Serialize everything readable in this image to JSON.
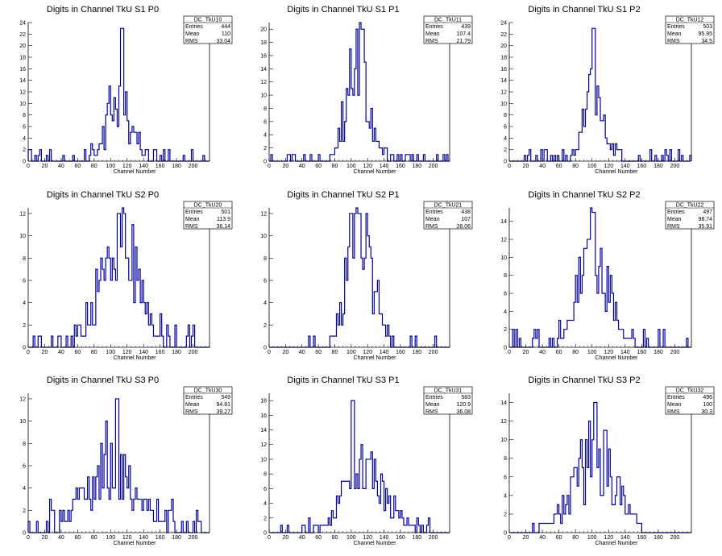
{
  "chart_data": [
    {
      "type": "bar",
      "title": "Digits in Channel TkU S1 P0",
      "xlabel": "Channel Number",
      "ylabel": "",
      "xlim": [
        0,
        220
      ],
      "ylim": [
        0,
        24
      ],
      "xticks": [
        0,
        20,
        40,
        60,
        80,
        100,
        120,
        140,
        160,
        180,
        200
      ],
      "yticks": [
        0,
        2,
        4,
        6,
        8,
        10,
        12,
        14,
        16,
        18,
        20,
        22,
        24
      ],
      "stats": {
        "name": "DC_TkU10",
        "entries": "444",
        "mean": "110",
        "rms": "33.04"
      },
      "hist": {
        "bin_width": 2,
        "peak_at": [
          114,
          23
        ],
        "sigma": 14,
        "amp": 11,
        "mean": 110,
        "noise": 1.5,
        "seed": 1
      }
    },
    {
      "type": "bar",
      "title": "Digits in Channel TkU S1 P1",
      "xlabel": "Channel Number",
      "ylabel": "",
      "xlim": [
        0,
        220
      ],
      "ylim": [
        0,
        21
      ],
      "xticks": [
        0,
        20,
        40,
        60,
        80,
        100,
        120,
        140,
        160,
        180,
        200
      ],
      "yticks": [
        0,
        2,
        4,
        6,
        8,
        10,
        12,
        14,
        16,
        18,
        20
      ],
      "stats": {
        "name": "DC_TkU11",
        "entries": "439",
        "mean": "107.4",
        "rms": "21.79"
      },
      "hist": {
        "bin_width": 2,
        "peak_at": [
          107,
          20
        ],
        "sigma": 13,
        "amp": 15,
        "mean": 108,
        "noise": 0.8,
        "seed": 2
      }
    },
    {
      "type": "bar",
      "title": "Digits in Channel TkU S1 P2",
      "xlabel": "Channel Number",
      "ylabel": "",
      "xlim": [
        0,
        220
      ],
      "ylim": [
        0,
        24
      ],
      "xticks": [
        0,
        20,
        40,
        60,
        80,
        100,
        120,
        140,
        160,
        180,
        200
      ],
      "yticks": [
        0,
        2,
        4,
        6,
        8,
        10,
        12,
        14,
        16,
        18,
        20,
        22,
        24
      ],
      "stats": {
        "name": "DC_TkU12",
        "entries": "503",
        "mean": "95.95",
        "rms": "34.5"
      },
      "hist": {
        "bin_width": 2,
        "peak_at": [
          102,
          23
        ],
        "sigma": 11,
        "amp": 15,
        "mean": 104,
        "noise": 1.4,
        "seed": 3
      }
    },
    {
      "type": "bar",
      "title": "Digits in Channel TkU S2 P0",
      "xlabel": "Channel Number",
      "ylabel": "",
      "xlim": [
        0,
        220
      ],
      "ylim": [
        0,
        12.5
      ],
      "xticks": [
        0,
        20,
        40,
        60,
        80,
        100,
        120,
        140,
        160,
        180,
        200
      ],
      "yticks": [
        0,
        2,
        4,
        6,
        8,
        10,
        12
      ],
      "stats": {
        "name": "DC_TkU20",
        "entries": "501",
        "mean": "113.9",
        "rms": "36.14"
      },
      "hist": {
        "bin_width": 2,
        "peak_at": [
          110,
          12
        ],
        "sigma": 22,
        "amp": 9,
        "mean": 112,
        "noise": 1.2,
        "seed": 4
      }
    },
    {
      "type": "bar",
      "title": "Digits in Channel TkU S2 P1",
      "xlabel": "Channel Number",
      "ylabel": "",
      "xlim": [
        0,
        220
      ],
      "ylim": [
        0,
        12.5
      ],
      "xticks": [
        0,
        20,
        40,
        60,
        80,
        100,
        120,
        140,
        160,
        180,
        200
      ],
      "yticks": [
        0,
        2,
        4,
        6,
        8,
        10,
        12
      ],
      "stats": {
        "name": "DC_TkU21",
        "entries": "438",
        "mean": "107",
        "rms": "26.06"
      },
      "hist": {
        "bin_width": 2,
        "peak_at": [
          110,
          12
        ],
        "sigma": 16,
        "amp": 10,
        "mean": 110,
        "noise": 0.7,
        "seed": 5
      }
    },
    {
      "type": "bar",
      "title": "Digits in Channel TkU S2 P2",
      "xlabel": "Channel Number",
      "ylabel": "",
      "xlim": [
        0,
        220
      ],
      "ylim": [
        0,
        15.5
      ],
      "xticks": [
        0,
        20,
        40,
        60,
        80,
        100,
        120,
        140,
        160,
        180,
        200
      ],
      "yticks": [
        0,
        2,
        4,
        6,
        8,
        10,
        12,
        14
      ],
      "stats": {
        "name": "DC_TkU22",
        "entries": "497",
        "mean": "98.74",
        "rms": "35.91"
      },
      "hist": {
        "bin_width": 2,
        "peak_at": [
          102,
          15
        ],
        "sigma": 18,
        "amp": 10,
        "mean": 102,
        "noise": 1.3,
        "seed": 6
      }
    },
    {
      "type": "bar",
      "title": "Digits in Channel TkU S3 P0",
      "xlabel": "Channel Number",
      "ylabel": "",
      "xlim": [
        0,
        220
      ],
      "ylim": [
        0,
        12.5
      ],
      "xticks": [
        0,
        20,
        40,
        60,
        80,
        100,
        120,
        140,
        160,
        180,
        200
      ],
      "yticks": [
        0,
        2,
        4,
        6,
        8,
        10,
        12
      ],
      "stats": {
        "name": "DC_TkU30",
        "entries": "549",
        "mean": "94.81",
        "rms": "39.27"
      },
      "hist": {
        "bin_width": 2,
        "peak_at": [
          108,
          12
        ],
        "sigma": 30,
        "amp": 6,
        "mean": 100,
        "noise": 1.6,
        "seed": 7
      }
    },
    {
      "type": "bar",
      "title": "Digits in Channel TkU S3 P1",
      "xlabel": "Channel Number",
      "ylabel": "",
      "xlim": [
        0,
        220
      ],
      "ylim": [
        0,
        19
      ],
      "xticks": [
        0,
        20,
        40,
        60,
        80,
        100,
        120,
        140,
        160,
        180,
        200
      ],
      "yticks": [
        0,
        2,
        4,
        6,
        8,
        10,
        12,
        14,
        16,
        18
      ],
      "stats": {
        "name": "DC_TkU31",
        "entries": "583",
        "mean": "120.9",
        "rms": "36.08"
      },
      "hist": {
        "bin_width": 2,
        "peak_at": [
          102,
          18
        ],
        "sigma": 26,
        "amp": 8,
        "mean": 118,
        "noise": 0.9,
        "seed": 8
      }
    },
    {
      "type": "bar",
      "title": "Digits in Channel TkU S3 P2",
      "xlabel": "Channel Number",
      "ylabel": "",
      "xlim": [
        0,
        220
      ],
      "ylim": [
        0,
        15
      ],
      "xticks": [
        0,
        20,
        40,
        60,
        80,
        100,
        120,
        140,
        160,
        180,
        200
      ],
      "yticks": [
        0,
        2,
        4,
        6,
        8,
        10,
        12,
        14
      ],
      "stats": {
        "name": "DC_TkU32",
        "entries": "496",
        "mean": "100",
        "rms": "30.3"
      },
      "hist": {
        "bin_width": 2,
        "peak_at": [
          104,
          14
        ],
        "sigma": 26,
        "amp": 8,
        "mean": 102,
        "noise": 0.3,
        "seed": 9
      }
    }
  ],
  "stat_labels": {
    "entries": "Entries",
    "mean": "Mean",
    "rms": "RMS"
  },
  "colors": {
    "line": "#000099",
    "axis": "#000000",
    "frame": "#000000",
    "background": "#ffffff"
  }
}
